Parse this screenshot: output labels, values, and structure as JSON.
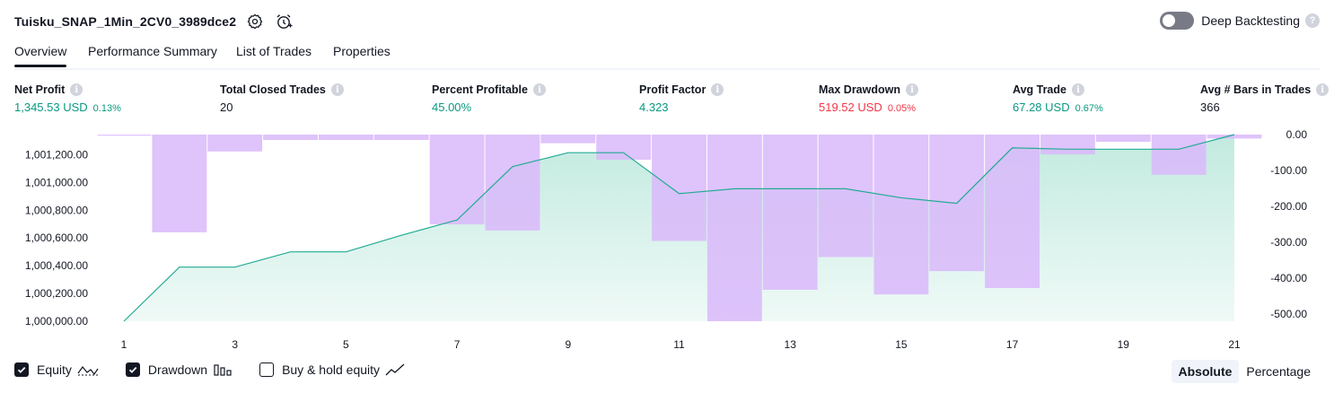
{
  "header": {
    "title": "Tuisku_SNAP_1Min_2CV0_3989dce2",
    "deep_backtesting_label": "Deep Backtesting",
    "deep_backtesting_enabled": false,
    "help_glyph": "?"
  },
  "tabs": [
    {
      "label": "Overview",
      "active": true
    },
    {
      "label": "Performance Summary",
      "active": false
    },
    {
      "label": "List of Trades",
      "active": false
    },
    {
      "label": "Properties",
      "active": false
    }
  ],
  "stats": {
    "net_profit": {
      "label": "Net Profit",
      "value": "1,345.53 USD",
      "pct": "0.13%"
    },
    "total_closed_trades": {
      "label": "Total Closed Trades",
      "value": "20"
    },
    "percent_profitable": {
      "label": "Percent Profitable",
      "value": "45.00%"
    },
    "profit_factor": {
      "label": "Profit Factor",
      "value": "4.323"
    },
    "max_drawdown": {
      "label": "Max Drawdown",
      "value": "519.52 USD",
      "pct": "0.05%"
    },
    "avg_trade": {
      "label": "Avg Trade",
      "value": "67.28 USD",
      "pct": "0.67%"
    },
    "avg_bars": {
      "label": "Avg # Bars in Trades",
      "value": "366"
    }
  },
  "info_glyph": "i",
  "colors": {
    "equity_line": "#22ab94",
    "equity_fill": "#c2eadf",
    "drawdown_bar": "#d9b8fa",
    "positive": "#089981",
    "negative": "#f23645",
    "text": "#131722"
  },
  "chart_data": {
    "type": "area",
    "x": [
      1,
      2,
      3,
      4,
      5,
      6,
      7,
      8,
      9,
      10,
      11,
      12,
      13,
      14,
      15,
      16,
      17,
      18,
      19,
      20,
      21
    ],
    "x_ticks": [
      "1",
      "3",
      "5",
      "7",
      "9",
      "11",
      "13",
      "15",
      "17",
      "19",
      "21"
    ],
    "y_left_ticks": [
      "1,000,000.00",
      "1,000,200.00",
      "1,000,400.00",
      "1,000,600.00",
      "1,000,800.00",
      "1,001,000.00",
      "1,001,200.00"
    ],
    "y_right_ticks": [
      "0.00",
      "-100.00",
      "-200.00",
      "-300.00",
      "-400.00",
      "-500.00"
    ],
    "ylim_left": [
      1000000,
      1001345.53
    ],
    "ylim_right": [
      -519.52,
      0
    ],
    "series": [
      {
        "name": "Equity",
        "axis": "left",
        "values": [
          1000000,
          1000390,
          1000390,
          1000500,
          1000500,
          1000620,
          1000730,
          1001115,
          1001215,
          1001215,
          1000920,
          1000955,
          1000955,
          1000955,
          1000890,
          1000850,
          1001250,
          1001240,
          1001240,
          1001240,
          1001345.53
        ]
      },
      {
        "name": "Drawdown",
        "axis": "right",
        "type": "bar",
        "values": [
          -3,
          -272,
          -47,
          -15,
          -15,
          -15,
          -250,
          -267,
          -24,
          -70,
          -296,
          -519.52,
          -432,
          -341,
          -445,
          -380,
          -427,
          -55,
          -20,
          -112,
          -11
        ]
      }
    ]
  },
  "legend": [
    {
      "label": "Equity",
      "checked": true,
      "icon": "equity-line-icon"
    },
    {
      "label": "Drawdown",
      "checked": true,
      "icon": "drawdown-bars-icon"
    },
    {
      "label": "Buy & hold equity",
      "checked": false,
      "icon": "buy-hold-line-icon"
    }
  ],
  "modes": [
    {
      "label": "Absolute",
      "active": true
    },
    {
      "label": "Percentage",
      "active": false
    }
  ]
}
